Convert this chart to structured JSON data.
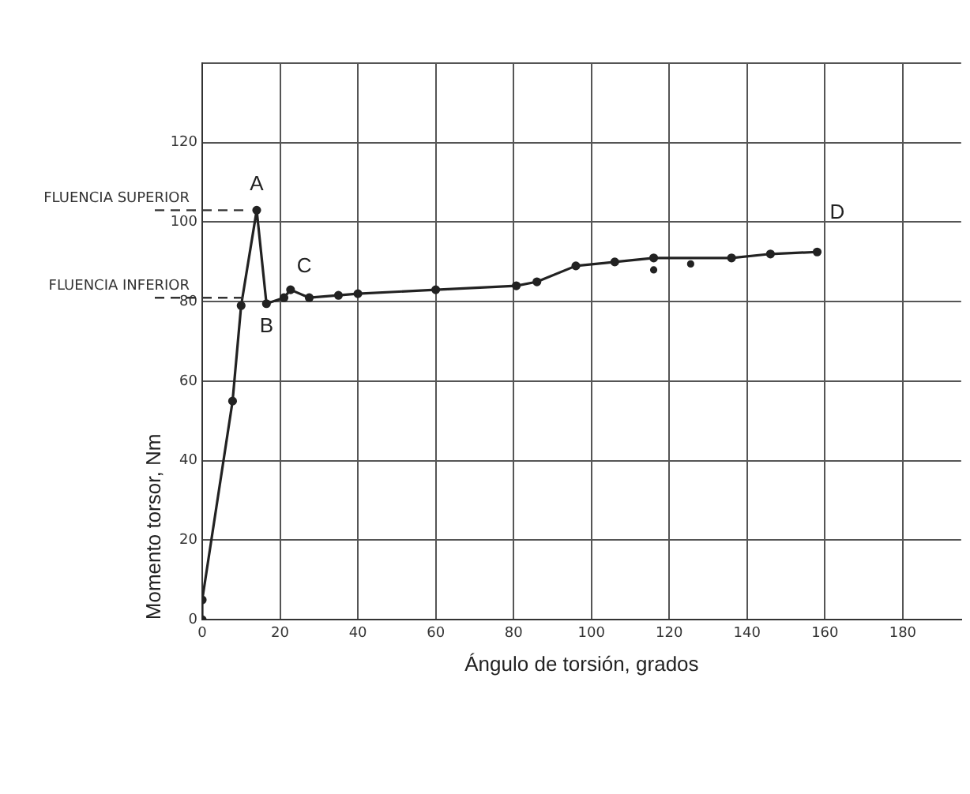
{
  "chart_data": {
    "type": "line",
    "xlabel": "Ángulo de torsión, grados",
    "ylabel": "Momento torsor, Nm",
    "xlim": [
      0,
      195
    ],
    "xticks": [
      0,
      20,
      40,
      60,
      80,
      100,
      120,
      140,
      160,
      180
    ],
    "ylim": [
      0,
      140
    ],
    "yticks": [
      0,
      20,
      40,
      60,
      80,
      100,
      120,
      {
        "value": 140,
        "label": null
      }
    ],
    "grid": true,
    "legend": false,
    "marker": "circle",
    "line_style": "solid",
    "series": [
      {
        "color": "#222222",
        "x": [
          0,
          0,
          7.8,
          10,
          14,
          16.5,
          21,
          22.7,
          27.5,
          35,
          40,
          60,
          80.7,
          86,
          96,
          106,
          116,
          136,
          146,
          158
        ],
        "values": [
          0,
          5,
          55,
          79,
          103,
          79.5,
          81,
          83,
          81,
          81.6,
          82,
          83,
          84,
          85,
          89,
          90,
          91,
          91,
          92,
          92.5
        ]
      },
      {
        "type": "scatter",
        "color": "#222222",
        "x": [
          116,
          125.5
        ],
        "values": [
          88,
          89.5
        ]
      }
    ],
    "ref_lines": [
      {
        "axis": "y",
        "value": 103,
        "label": "FLUENCIA SUPERIOR",
        "line_style": "dashed"
      },
      {
        "axis": "y",
        "value": 81,
        "label": "FLUENCIA INFERIOR",
        "line_style": "dashed"
      }
    ],
    "annotations": [
      {
        "text": "A",
        "x": 14,
        "y": 103
      },
      {
        "text": "B",
        "x": 16.5,
        "y": 79.5
      },
      {
        "text": "C",
        "x": 22.7,
        "y": 83
      },
      {
        "text": "D",
        "x": 158,
        "y": 92.5
      }
    ]
  }
}
